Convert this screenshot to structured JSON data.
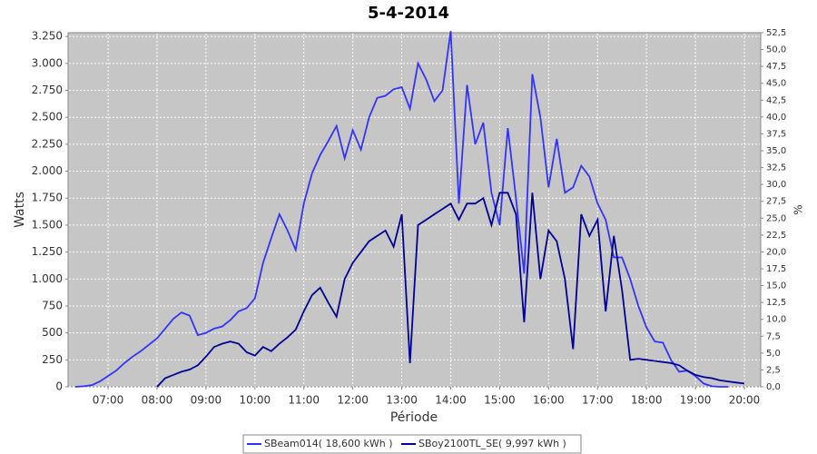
{
  "chart_data": {
    "type": "line",
    "title": "5-4-2014",
    "x_label": "Période",
    "y_label": "Watts",
    "y2_label": "%",
    "x": [
      "06:20",
      "06:30",
      "06:40",
      "06:50",
      "07:00",
      "07:10",
      "07:20",
      "07:30",
      "07:40",
      "07:50",
      "08:00",
      "08:10",
      "08:20",
      "08:30",
      "08:40",
      "08:50",
      "09:00",
      "09:10",
      "09:20",
      "09:30",
      "09:40",
      "09:50",
      "10:00",
      "10:10",
      "10:20",
      "10:30",
      "10:40",
      "10:50",
      "11:00",
      "11:10",
      "11:20",
      "11:30",
      "11:40",
      "11:50",
      "12:00",
      "12:10",
      "12:20",
      "12:30",
      "12:40",
      "12:50",
      "13:00",
      "13:10",
      "13:20",
      "13:30",
      "13:40",
      "13:50",
      "14:00",
      "14:10",
      "14:20",
      "14:30",
      "14:40",
      "14:50",
      "15:00",
      "15:10",
      "15:20",
      "15:30",
      "15:40",
      "15:50",
      "16:00",
      "16:10",
      "16:20",
      "16:30",
      "16:40",
      "16:50",
      "17:00",
      "17:10",
      "17:20",
      "17:30",
      "17:40",
      "17:50",
      "18:00",
      "18:10",
      "18:20",
      "18:30",
      "18:40",
      "18:50",
      "19:00",
      "19:10",
      "19:20",
      "19:30",
      "19:40",
      "19:50",
      "20:00"
    ],
    "series": [
      {
        "name": "SBeam014( 18,600 kWh )",
        "color": "#3333ff",
        "values": [
          0,
          5,
          15,
          50,
          100,
          150,
          220,
          280,
          330,
          390,
          450,
          540,
          630,
          690,
          660,
          480,
          500,
          540,
          560,
          620,
          700,
          730,
          820,
          1150,
          1380,
          1600,
          1450,
          1270,
          1700,
          1980,
          2150,
          2280,
          2420,
          2120,
          2380,
          2200,
          2500,
          2680,
          2700,
          2760,
          2780,
          2580,
          3000,
          2850,
          2650,
          2750,
          3300,
          1700,
          2800,
          2250,
          2450,
          1800,
          1500,
          2400,
          1750,
          1050,
          2900,
          2500,
          1850,
          2300,
          1800,
          1850,
          2050,
          1950,
          1700,
          1550,
          1200,
          1200,
          1000,
          750,
          550,
          420,
          410,
          250,
          140,
          150,
          100,
          30,
          5,
          0,
          0,
          null,
          null
        ]
      },
      {
        "name": "SBoy2100TL_SE( 9,997 kWh )",
        "color": "#000099",
        "values": [
          null,
          null,
          null,
          null,
          null,
          null,
          null,
          null,
          null,
          null,
          0,
          80,
          110,
          140,
          160,
          200,
          280,
          370,
          400,
          420,
          400,
          320,
          290,
          370,
          330,
          400,
          460,
          530,
          700,
          850,
          920,
          780,
          650,
          1000,
          1150,
          1250,
          1350,
          1400,
          1450,
          1300,
          1600,
          220,
          1500,
          1550,
          1600,
          1650,
          1700,
          1550,
          1700,
          1700,
          1750,
          1500,
          1800,
          1800,
          1600,
          600,
          1800,
          1000,
          1450,
          1350,
          1000,
          350,
          1600,
          1400,
          1550,
          700,
          1400,
          900,
          250,
          260,
          250,
          240,
          230,
          220,
          200,
          150,
          110,
          90,
          80,
          60,
          50,
          40,
          30
        ]
      }
    ],
    "xlim": [
      "06:11",
      "20:20"
    ],
    "xticks": [
      "07:00",
      "08:00",
      "09:00",
      "10:00",
      "11:00",
      "12:00",
      "13:00",
      "14:00",
      "15:00",
      "16:00",
      "17:00",
      "18:00",
      "19:00",
      "20:00"
    ],
    "ylim": [
      0,
      3285
    ],
    "yticks": [
      0,
      250,
      500,
      750,
      {
        "value": 1000,
        "label": "1.000"
      },
      {
        "value": 1250,
        "label": "1.250"
      },
      {
        "value": 1500,
        "label": "1.500"
      },
      {
        "value": 1750,
        "label": "1.750"
      },
      {
        "value": 2000,
        "label": "2.000"
      },
      {
        "value": 2250,
        "label": "2.250"
      },
      {
        "value": 2500,
        "label": "2.500"
      },
      {
        "value": 2750,
        "label": "2.750"
      },
      {
        "value": 3000,
        "label": "3.000"
      },
      {
        "value": 3250,
        "label": "3.250"
      }
    ],
    "y2lim": [
      0,
      52.5
    ],
    "y2ticks": [
      {
        "value": 0,
        "label": "0,0"
      },
      {
        "value": 2.5,
        "label": "2,5"
      },
      {
        "value": 5,
        "label": "5,0"
      },
      {
        "value": 7.5,
        "label": "7,5"
      },
      {
        "value": 10,
        "label": "10,0"
      },
      {
        "value": 12.5,
        "label": "12,5"
      },
      {
        "value": 15,
        "label": "15,0"
      },
      {
        "value": 17.5,
        "label": "17,5"
      },
      {
        "value": 20,
        "label": "20,0"
      },
      {
        "value": 22.5,
        "label": "22,5"
      },
      {
        "value": 25,
        "label": "25,0"
      },
      {
        "value": 27.5,
        "label": "27,5"
      },
      {
        "value": 30,
        "label": "30,0"
      },
      {
        "value": 32.5,
        "label": "32,5"
      },
      {
        "value": 35,
        "label": "35,0"
      },
      {
        "value": 37.5,
        "label": "37,5"
      },
      {
        "value": 40,
        "label": "40,0"
      },
      {
        "value": 42.5,
        "label": "42,5"
      },
      {
        "value": 45,
        "label": "45,0"
      },
      {
        "value": 47.5,
        "label": "47,5"
      },
      {
        "value": 50,
        "label": "50,0"
      },
      {
        "value": 52.5,
        "label": "52,5"
      }
    ],
    "grid": true,
    "legend": "bottom"
  }
}
